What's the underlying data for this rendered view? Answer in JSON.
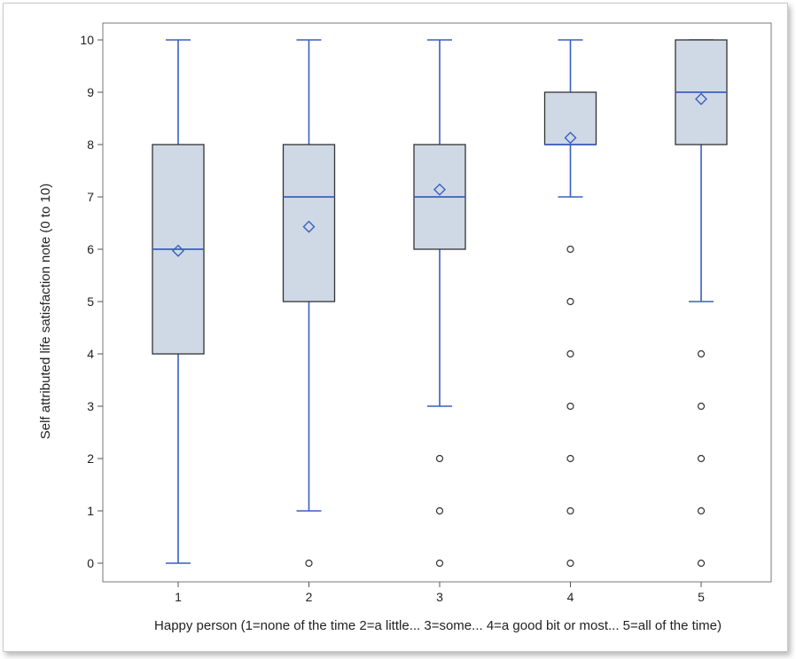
{
  "chart_data": {
    "type": "boxplot",
    "xlabel": "Happy person (1=none of the time 2=a little... 3=some... 4=a good bit or most... 5=all of the time)",
    "ylabel": "Self attributed life satisfaction note (0 to 10)",
    "ylim": [
      0,
      10
    ],
    "yticks": [
      0,
      1,
      2,
      3,
      4,
      5,
      6,
      7,
      8,
      9,
      10
    ],
    "grid": false,
    "colors": {
      "box_fill": "#cfd9e6",
      "box_stroke": "#333333",
      "whisker": "#3b5fc0",
      "median": "#3b5fc0",
      "mean_marker": "#3b5fc0",
      "outlier": "#333333"
    },
    "groups": [
      {
        "label": "1",
        "q1": 4,
        "median": 6,
        "q3": 8,
        "whisker_low": 0,
        "whisker_high": 10,
        "mean": 5.97,
        "outliers": []
      },
      {
        "label": "2",
        "q1": 5,
        "median": 7,
        "q3": 8,
        "whisker_low": 1,
        "whisker_high": 10,
        "mean": 6.43,
        "outliers": [
          0
        ]
      },
      {
        "label": "3",
        "q1": 6,
        "median": 7,
        "q3": 8,
        "whisker_low": 3,
        "whisker_high": 10,
        "mean": 7.14,
        "outliers": [
          0,
          1,
          2
        ]
      },
      {
        "label": "4",
        "q1": 8,
        "median": 8,
        "q3": 9,
        "whisker_low": 7,
        "whisker_high": 10,
        "mean": 8.13,
        "outliers": [
          0,
          1,
          2,
          3,
          4,
          5,
          6
        ]
      },
      {
        "label": "5",
        "q1": 8,
        "median": 9,
        "q3": 10,
        "whisker_low": 5,
        "whisker_high": 10,
        "mean": 8.87,
        "outliers": [
          0,
          1,
          2,
          3,
          4
        ]
      }
    ]
  }
}
